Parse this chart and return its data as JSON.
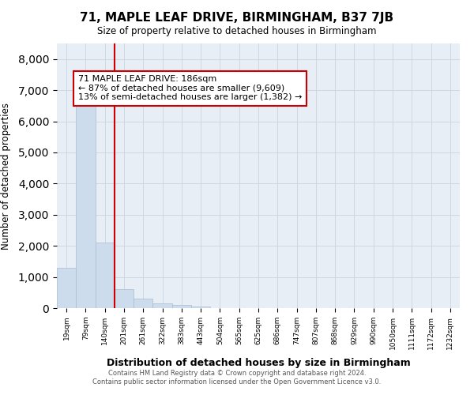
{
  "title": "71, MAPLE LEAF DRIVE, BIRMINGHAM, B37 7JB",
  "subtitle": "Size of property relative to detached houses in Birmingham",
  "xlabel": "Distribution of detached houses by size in Birmingham",
  "ylabel": "Number of detached properties",
  "annotation_line1": "71 MAPLE LEAF DRIVE: 186sqm",
  "annotation_line2": "← 87% of detached houses are smaller (9,609)",
  "annotation_line3": "13% of semi-detached houses are larger (1,382) →",
  "bin_labels": [
    "19sqm",
    "79sqm",
    "140sqm",
    "201sqm",
    "261sqm",
    "322sqm",
    "383sqm",
    "443sqm",
    "504sqm",
    "565sqm",
    "625sqm",
    "686sqm",
    "747sqm",
    "807sqm",
    "868sqm",
    "929sqm",
    "990sqm",
    "1050sqm",
    "1111sqm",
    "1172sqm",
    "1232sqm"
  ],
  "bar_values": [
    1300,
    6600,
    2100,
    600,
    300,
    150,
    100,
    50,
    10,
    5,
    3,
    0,
    0,
    0,
    0,
    0,
    0,
    0,
    0,
    0,
    0
  ],
  "bar_color": "#ccdcec",
  "bar_edge_color": "#aabccc",
  "red_line_x": 3.0,
  "red_line_color": "#cc0000",
  "annotation_box_color": "#cc0000",
  "ylim": [
    0,
    8500
  ],
  "yticks": [
    0,
    1000,
    2000,
    3000,
    4000,
    5000,
    6000,
    7000,
    8000
  ],
  "plot_bg_color": "#e8eef5",
  "footer_line1": "Contains HM Land Registry data © Crown copyright and database right 2024.",
  "footer_line2": "Contains public sector information licensed under the Open Government Licence v3.0.",
  "bg_color": "#ffffff",
  "grid_color": "#c8d4e0"
}
